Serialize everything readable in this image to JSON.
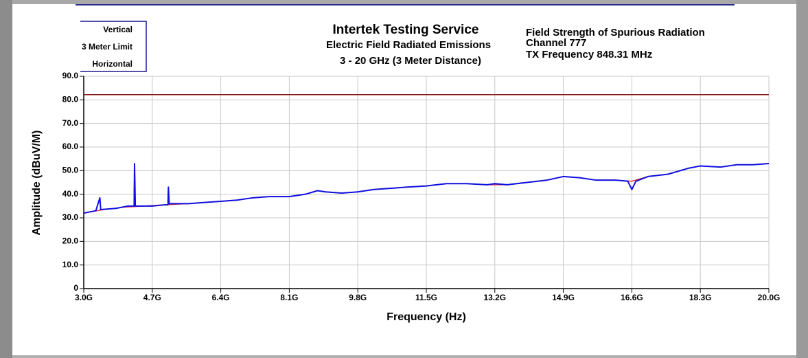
{
  "chart_data": {
    "type": "line",
    "title": "Intertek Testing Service",
    "subtitle": "Electric Field Radiated Emissions",
    "subtitle2": "3 - 20 GHz (3 Meter Distance)",
    "annotations": [
      "Field Strength of Spurious Radiation",
      "Channel 777",
      "TX Frequency 848.31 MHz"
    ],
    "x_label": "Frequency (Hz)",
    "y_label": "Amplitude (dBuV/M)",
    "xlim": [
      3.0,
      20.0
    ],
    "ylim": [
      0,
      90
    ],
    "xticks": [
      {
        "value": 3.0,
        "label": "3.0G"
      },
      {
        "value": 4.7,
        "label": "4.7G"
      },
      {
        "value": 6.4,
        "label": "6.4G"
      },
      {
        "value": 8.1,
        "label": "8.1G"
      },
      {
        "value": 9.8,
        "label": "9.8G"
      },
      {
        "value": 11.5,
        "label": "11.5G"
      },
      {
        "value": 13.2,
        "label": "13.2G"
      },
      {
        "value": 14.9,
        "label": "14.9G"
      },
      {
        "value": 16.6,
        "label": "16.6G"
      },
      {
        "value": 18.3,
        "label": "18.3G"
      },
      {
        "value": 20.0,
        "label": "20.0G"
      }
    ],
    "yticks": [
      0,
      {
        "value": 10,
        "label": "10.0"
      },
      {
        "value": 20,
        "label": "20.0"
      },
      {
        "value": 30,
        "label": "30.0"
      },
      {
        "value": 40,
        "label": "40.0"
      },
      {
        "value": 50,
        "label": "50.0"
      },
      {
        "value": 60,
        "label": "60.0"
      },
      {
        "value": 70,
        "label": "70.0"
      },
      {
        "value": 80,
        "label": "80.0"
      },
      {
        "value": 90,
        "label": "90.0"
      }
    ],
    "grid": true,
    "legend": "top-left",
    "series": [
      {
        "name": "Vertical",
        "color": "#e0303a",
        "x": [
          3.0,
          3.5,
          4.0,
          4.5,
          5.0,
          5.6,
          6.0,
          6.4,
          6.8,
          7.2,
          7.6,
          8.1,
          8.5,
          8.8,
          9.0,
          9.4,
          9.8,
          10.2,
          10.6,
          11.0,
          11.5,
          12.0,
          12.5,
          13.0,
          13.5,
          14.0,
          14.5,
          14.9,
          15.3,
          15.7,
          16.2,
          16.6,
          17.0,
          17.5,
          18.0,
          18.3,
          18.8,
          19.2,
          19.6,
          20.0
        ],
        "values": [
          32,
          33.5,
          34.5,
          35,
          35.5,
          36,
          36.5,
          37,
          37.5,
          38.5,
          39,
          39,
          40,
          41.5,
          41,
          40.5,
          41,
          42,
          42.5,
          43,
          43.5,
          44.5,
          44.5,
          44,
          44,
          45,
          46,
          47.5,
          47,
          46,
          46,
          45.5,
          47.5,
          48.5,
          51,
          52,
          51.5,
          52.5,
          52.5,
          53
        ]
      },
      {
        "name": "3 Meter Limit",
        "color": "#8b1a1a",
        "x": [
          3.0,
          20.0
        ],
        "values": [
          82.2,
          82.2
        ]
      },
      {
        "name": "Horizontal",
        "color": "#1010e0",
        "x": [
          3.0,
          3.3,
          3.4,
          3.42,
          3.8,
          4.1,
          4.25,
          4.26,
          4.28,
          4.7,
          5.0,
          5.09,
          5.1,
          5.12,
          5.6,
          6.0,
          6.4,
          6.8,
          7.2,
          7.6,
          8.1,
          8.5,
          8.8,
          9.0,
          9.4,
          9.8,
          10.2,
          10.6,
          11.0,
          11.5,
          12.0,
          12.5,
          13.0,
          13.2,
          13.5,
          14.0,
          14.5,
          14.9,
          15.3,
          15.7,
          16.2,
          16.5,
          16.6,
          16.7,
          17.0,
          17.5,
          18.0,
          18.3,
          18.8,
          19.2,
          19.6,
          20.0
        ],
        "values": [
          32,
          33,
          38.5,
          33.5,
          34,
          35,
          35,
          53,
          35,
          35,
          35.5,
          35.5,
          43,
          36,
          36,
          36.5,
          37,
          37.5,
          38.5,
          39,
          39,
          40,
          41.5,
          41,
          40.5,
          41,
          42,
          42.5,
          43,
          43.5,
          44.5,
          44.5,
          44,
          44.5,
          44,
          45,
          46,
          47.5,
          47,
          46,
          46,
          45.5,
          42,
          45.5,
          47.5,
          48.5,
          51,
          52,
          51.5,
          52.5,
          52.5,
          53
        ]
      }
    ]
  }
}
